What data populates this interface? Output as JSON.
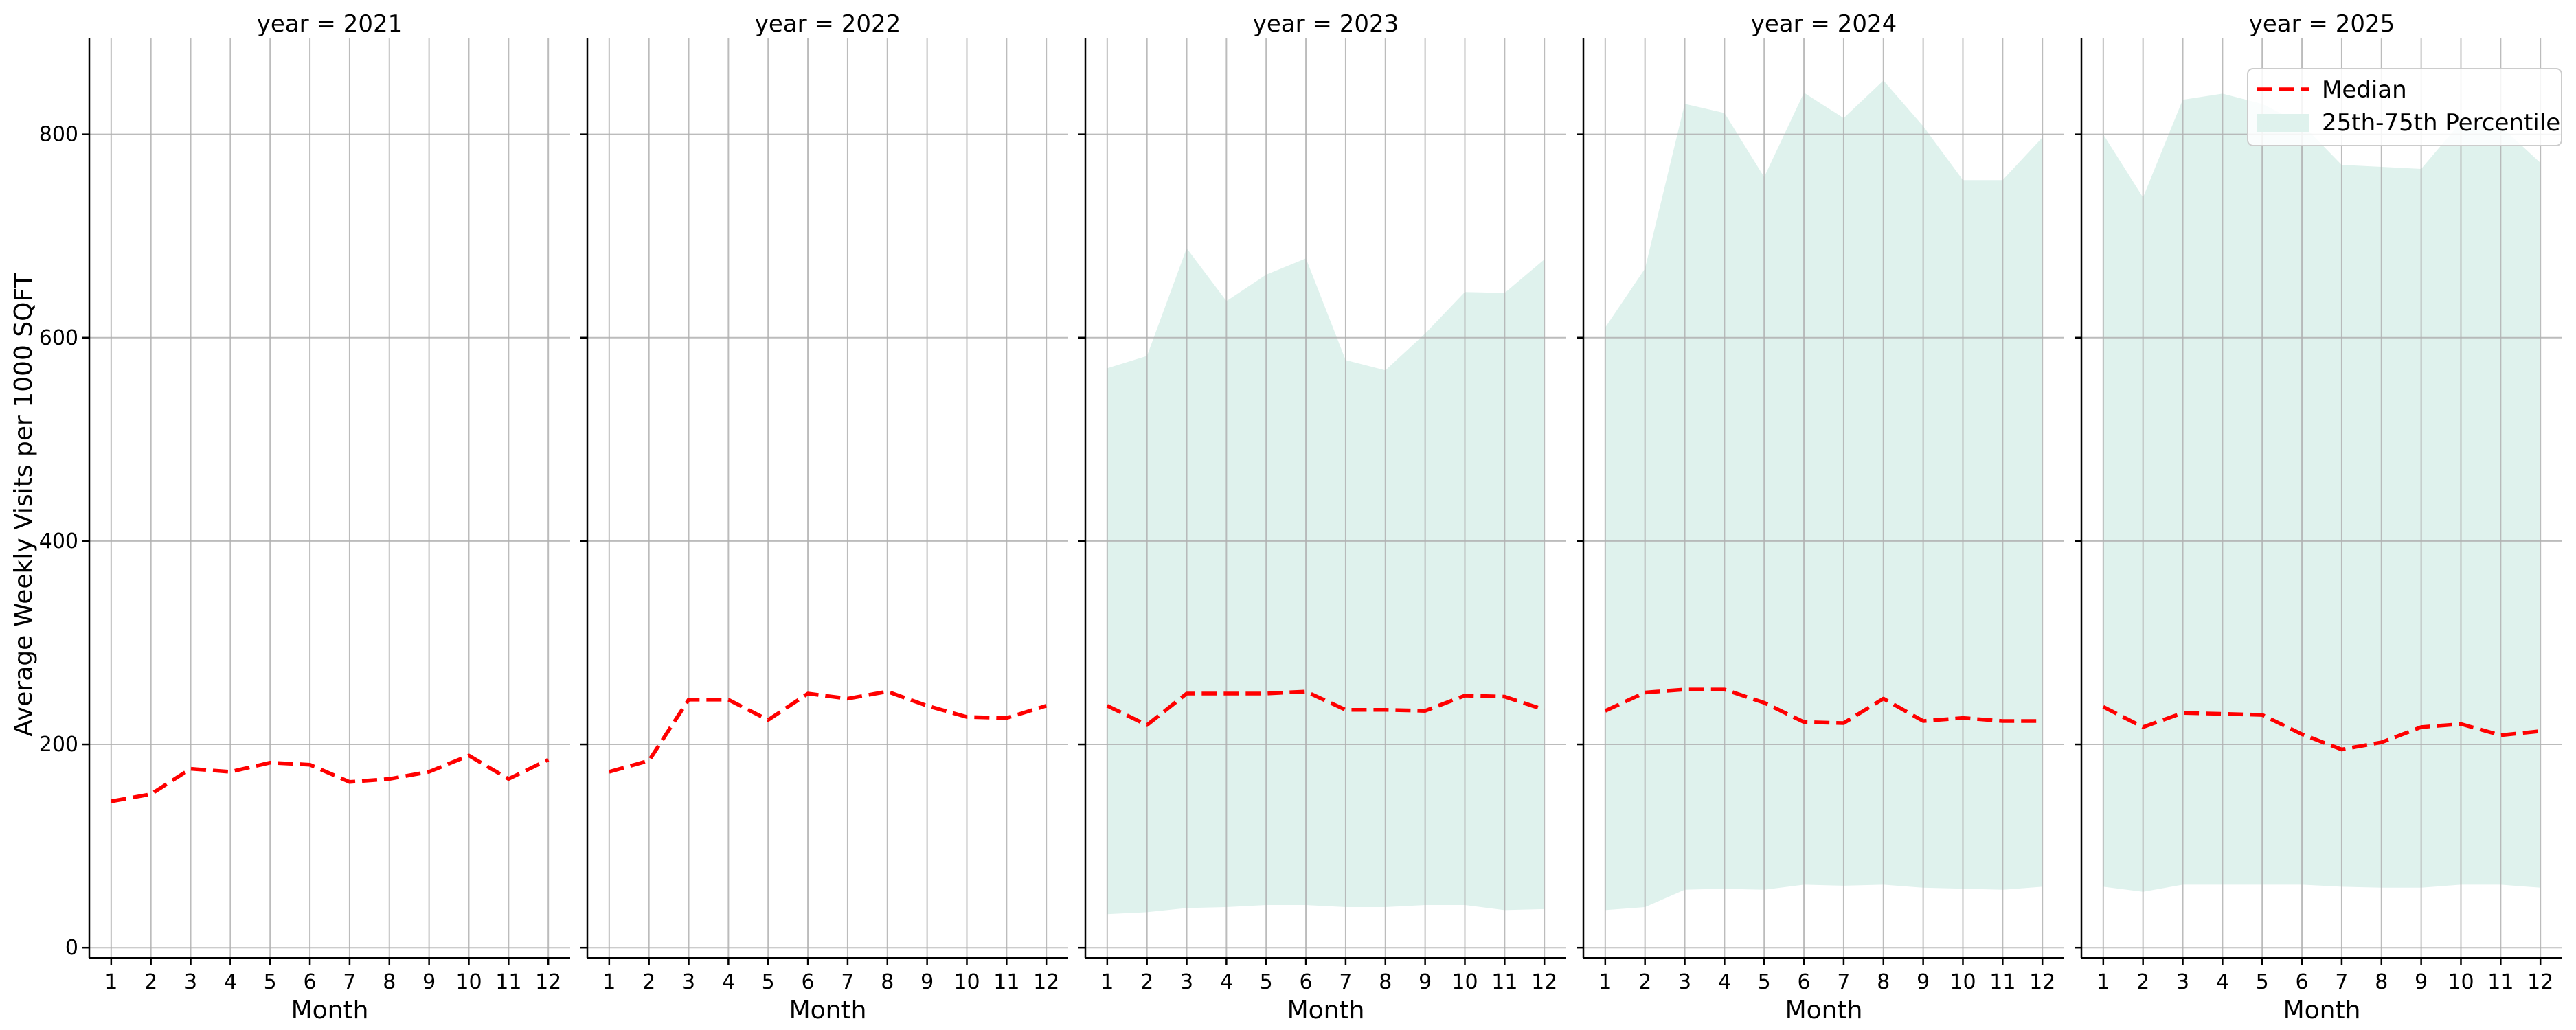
{
  "chart_data": {
    "type": "line",
    "facet_var": "year",
    "xlabel": "Month",
    "ylabel": "Average Weekly Visits per 1000 SQFT",
    "x": [
      1,
      2,
      3,
      4,
      5,
      6,
      7,
      8,
      9,
      10,
      11,
      12
    ],
    "ylim": [
      -10,
      895
    ],
    "yticks": [
      0,
      200,
      400,
      600,
      800
    ],
    "grid": true,
    "legend": {
      "placement": "top-right",
      "entries": [
        "Median",
        "25th-75th Percentile"
      ]
    },
    "colors": {
      "median": "#ff0000",
      "band": "#dff2ed",
      "grid": "#b0b0b0"
    },
    "facets": [
      {
        "title": "year = 2021",
        "median": [
          144,
          151,
          176,
          173,
          182,
          180,
          163,
          166,
          173,
          189,
          166,
          185
        ],
        "p25": null,
        "p75": null
      },
      {
        "title": "year = 2022",
        "median": [
          173,
          184,
          244,
          244,
          224,
          250,
          245,
          252,
          238,
          227,
          226,
          238
        ],
        "p25": null,
        "p75": null
      },
      {
        "title": "year = 2023",
        "median": [
          238,
          219,
          250,
          250,
          250,
          252,
          234,
          234,
          233,
          248,
          247,
          234
        ],
        "p25": [
          33,
          35,
          39,
          40,
          42,
          42,
          40,
          40,
          42,
          42,
          37,
          38
        ],
        "p75": [
          570,
          582,
          688,
          636,
          662,
          678,
          578,
          568,
          604,
          645,
          644,
          677
        ]
      },
      {
        "title": "year = 2024",
        "median": [
          233,
          251,
          254,
          254,
          241,
          222,
          221,
          245,
          223,
          226,
          223,
          223
        ],
        "p25": [
          37,
          40,
          57,
          58,
          57,
          62,
          61,
          62,
          59,
          58,
          57,
          60
        ],
        "p75": [
          610,
          668,
          830,
          821,
          758,
          841,
          816,
          853,
          808,
          755,
          755,
          797
        ]
      },
      {
        "title": "year = 2025",
        "median": [
          237,
          217,
          231,
          230,
          229,
          210,
          195,
          202,
          217,
          220,
          209,
          213
        ],
        "p25": [
          60,
          55,
          62,
          62,
          62,
          62,
          60,
          59,
          59,
          62,
          62,
          59
        ],
        "p75": [
          800,
          738,
          834,
          840,
          830,
          810,
          770,
          768,
          766,
          812,
          808,
          772
        ]
      }
    ]
  }
}
